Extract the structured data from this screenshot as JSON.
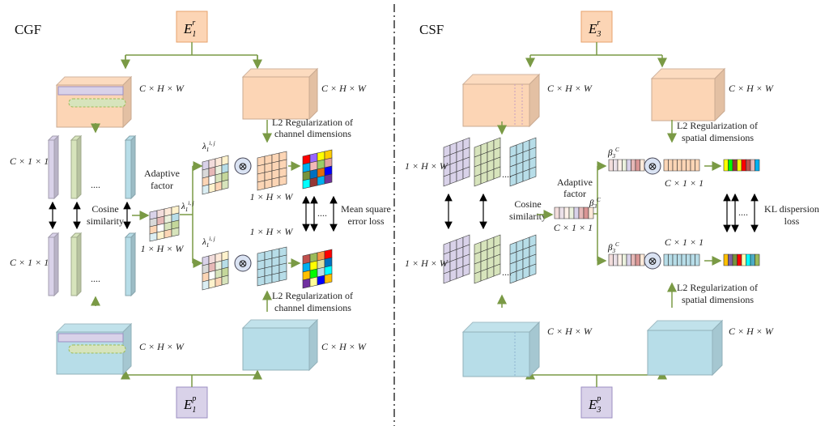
{
  "left": {
    "title": "CGF",
    "top_input": {
      "base": "E",
      "sub": "1",
      "sup": "r"
    },
    "bottom_input": {
      "base": "E",
      "sub": "1",
      "sup": "p"
    },
    "feature_label": "C × H × W",
    "slice_label": "C × 1 × 1",
    "ellipsis": "....",
    "cosine": [
      "Cosine",
      "similarity"
    ],
    "adaptive": [
      "Adaptive",
      "factor"
    ],
    "adaptive_dim": "1 × H × W",
    "lambda": {
      "base": "λ",
      "sub": "1",
      "sup": "i, j"
    },
    "map_dim": "1 × H × W",
    "l2": [
      "L2 Regularization of",
      "channel dimensions"
    ],
    "loss": [
      "Mean square",
      "error loss"
    ],
    "multiply": "⊗"
  },
  "right": {
    "title": "CSF",
    "top_input": {
      "base": "E",
      "sub": "3",
      "sup": "r"
    },
    "bottom_input": {
      "base": "E",
      "sub": "3",
      "sup": "p"
    },
    "feature_label": "C × H × W",
    "slice_label": "1 × H × W",
    "ellipsis": "....",
    "cosine": [
      "Cosine",
      "similarity"
    ],
    "adaptive": [
      "Adaptive",
      "factor"
    ],
    "adaptive_dim": "C × 1 × 1",
    "beta": {
      "base": "β",
      "sub": "3",
      "sup": "C"
    },
    "vec_dim": "C × 1 × 1",
    "l2": [
      "L2 Regularization of",
      "spatial dimensions"
    ],
    "loss": [
      "KL dispersion",
      "loss"
    ],
    "multiply": "⊗"
  },
  "colors": {
    "orange": "#fcd5b5",
    "blue": "#b7dde8",
    "purple": "#d9d2e9",
    "green": "#d7e4bc",
    "arrow": "#7a9a45"
  }
}
